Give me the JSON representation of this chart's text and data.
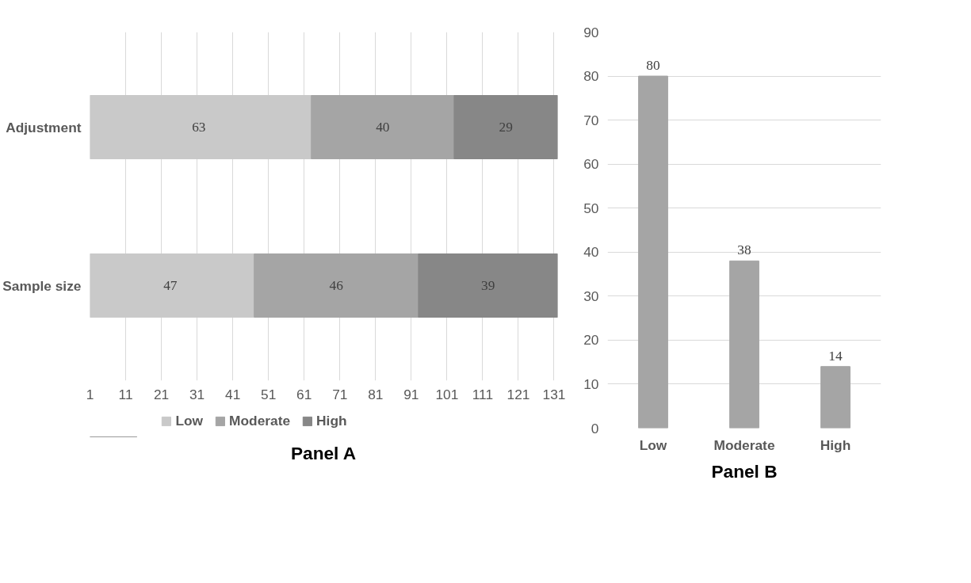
{
  "chart_data": [
    {
      "type": "bar",
      "title": "Panel A",
      "orientation": "horizontal",
      "stacked": true,
      "categories": [
        "Adjustment",
        "Sample size"
      ],
      "series": [
        {
          "name": "Low",
          "color": "#c9c9c9",
          "values": [
            63,
            47
          ]
        },
        {
          "name": "Moderate",
          "color": "#a5a5a5",
          "values": [
            40,
            46
          ]
        },
        {
          "name": "High",
          "color": "#878787",
          "values": [
            29,
            39
          ]
        }
      ],
      "xlim": [
        1,
        132
      ],
      "xticks": [
        1,
        11,
        21,
        31,
        41,
        51,
        61,
        71,
        81,
        91,
        101,
        111,
        121,
        131
      ],
      "grid": "x",
      "legend": "bottom",
      "data_labels": true
    },
    {
      "type": "bar",
      "title": "Panel B",
      "categories": [
        "Low",
        "Moderate",
        "High"
      ],
      "values": [
        80,
        38,
        14
      ],
      "color": "#a5a5a5",
      "ylim": [
        0,
        90
      ],
      "yticks": [
        0,
        10,
        20,
        30,
        40,
        50,
        60,
        70,
        80,
        90
      ],
      "grid": "y",
      "data_labels": true
    }
  ]
}
